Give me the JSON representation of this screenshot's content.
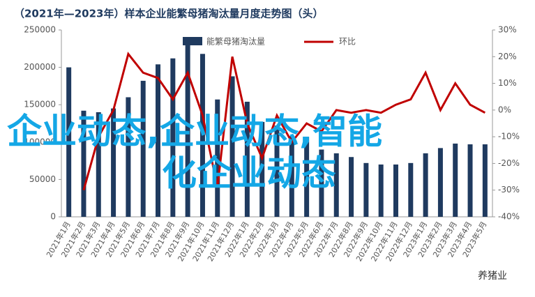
{
  "chart_data": {
    "type": "bar_line",
    "title": "（2021年—2023年）样本企业能繁母猪淘汰量月度走势图（头）",
    "categories": [
      "2021年1月",
      "2021年2月",
      "2021年3月",
      "2021年4月",
      "2021年5月",
      "2021年6月",
      "2021年7月",
      "2021年8月",
      "2021年9月",
      "2021年10月",
      "2021年11月",
      "2021年12月",
      "2022年1月",
      "2022年2月",
      "2022年3月",
      "2022年4月",
      "2022年5月",
      "2022年6月",
      "2022年7月",
      "2022年8月",
      "2022年9月",
      "2022年10月",
      "2022年11月",
      "2022年12月",
      "2023年1月",
      "2023年2月",
      "2023年3月",
      "2023年4月",
      "2023年5月"
    ],
    "series": [
      {
        "name": "能繁母猪淘汰量",
        "color": "#1f3a5f",
        "axis": "y",
        "values": [
          200000,
          142000,
          140000,
          145000,
          160000,
          182000,
          204000,
          212000,
          234000,
          218000,
          157000,
          188000,
          154000,
          127000,
          122000,
          108000,
          107000,
          90000,
          85000,
          80000,
          72000,
          70000,
          70000,
          72000,
          85000,
          92000,
          98000,
          97000,
          97000
        ]
      },
      {
        "name": "环比",
        "color": "#c00000",
        "axis": "y2",
        "values": [
          null,
          -30,
          -10,
          0,
          21,
          14,
          12,
          4,
          14,
          -2,
          -29,
          20,
          -5,
          -18,
          -2,
          -12,
          -5,
          -8,
          0,
          -1,
          0,
          -1,
          2,
          4,
          14,
          0,
          10,
          2,
          -1
        ]
      }
    ],
    "ylim": [
      0,
      250000
    ],
    "yticks": [
      0,
      50000,
      100000,
      150000,
      200000,
      250000
    ],
    "y2lim": [
      -40,
      30
    ],
    "y2ticks": [
      {
        "value": -40,
        "label": "-40%"
      },
      {
        "value": -30,
        "label": "-30%"
      },
      {
        "value": -20,
        "label": "-20%"
      },
      {
        "value": -10,
        "label": "-10%"
      },
      {
        "value": 0,
        "label": "0%"
      },
      {
        "value": 10,
        "label": "10%"
      },
      {
        "value": 20,
        "label": "20%"
      },
      {
        "value": 30,
        "label": "30%"
      }
    ],
    "overlay_text": [
      "企业动态,企业动态,智能",
      "化企业动态"
    ],
    "watermark": "养猪业"
  }
}
